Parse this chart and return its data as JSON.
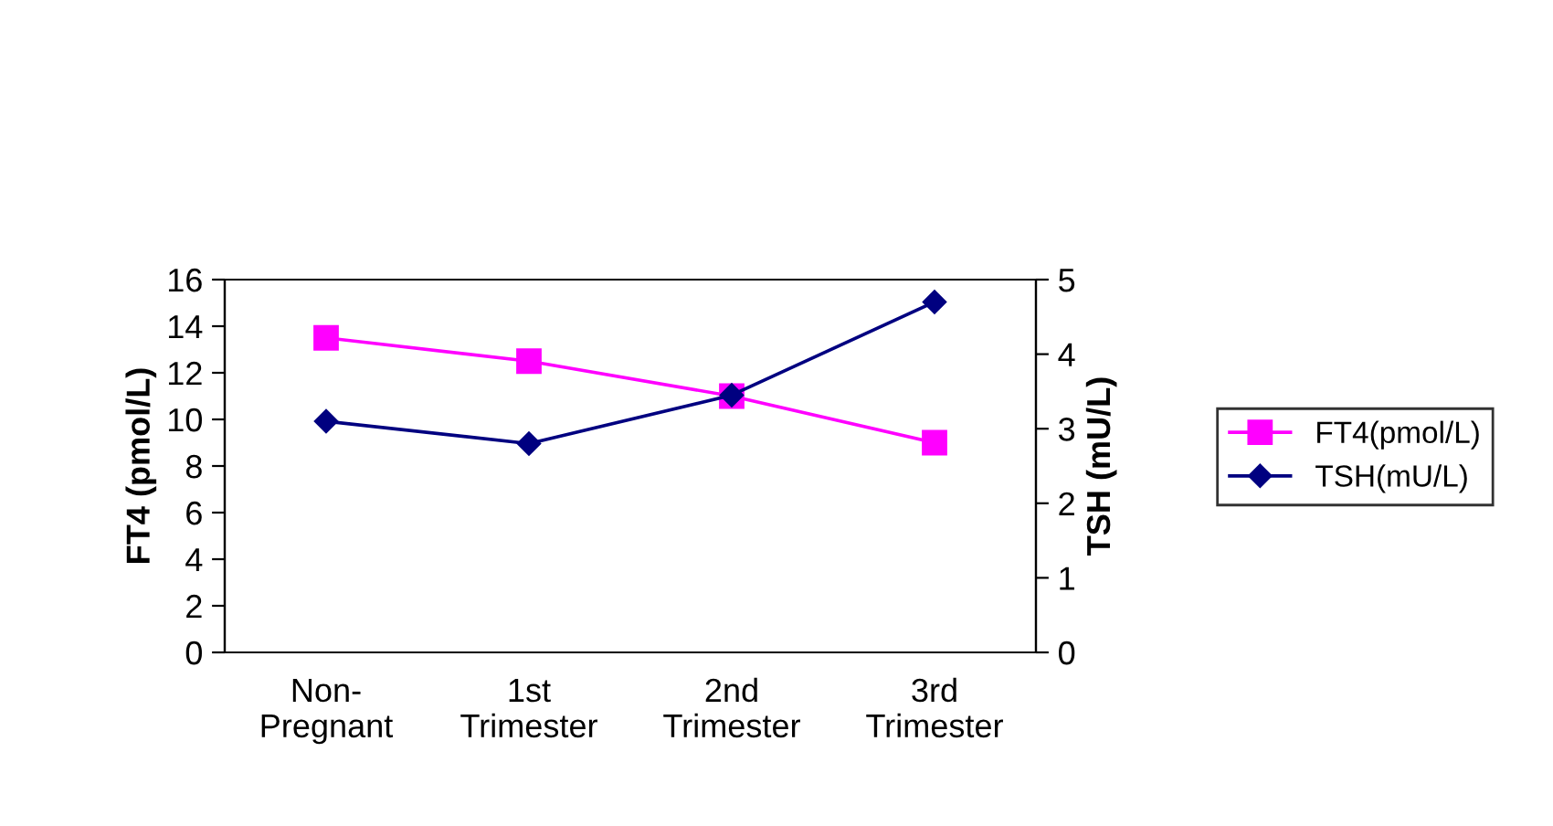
{
  "chart_data": {
    "type": "line",
    "categories": [
      "Non-\nPregnant",
      "1st\nTrimester",
      "2nd\nTrimester",
      "3rd\nTrimester"
    ],
    "ylabel": "FT4 (pmol/L)",
    "y2label": "TSH (mU/L)",
    "ylim": [
      0,
      16
    ],
    "yticks": [
      0,
      2,
      4,
      6,
      8,
      10,
      12,
      14,
      16
    ],
    "y2lim": [
      0,
      5
    ],
    "y2ticks": [
      0,
      1,
      2,
      3,
      4,
      5
    ],
    "series": [
      {
        "name": "FT4(pmol/L)",
        "color": "#ff00ff",
        "marker": "square",
        "values": [
          13.5,
          12.5,
          11.0,
          9.0
        ]
      },
      {
        "name": "TSH(mU/L)",
        "color": "#000080",
        "marker": "diamond",
        "axis": "y2",
        "values": [
          3.1,
          2.8,
          3.45,
          4.7
        ]
      }
    ],
    "legend": "right",
    "grid": false
  }
}
